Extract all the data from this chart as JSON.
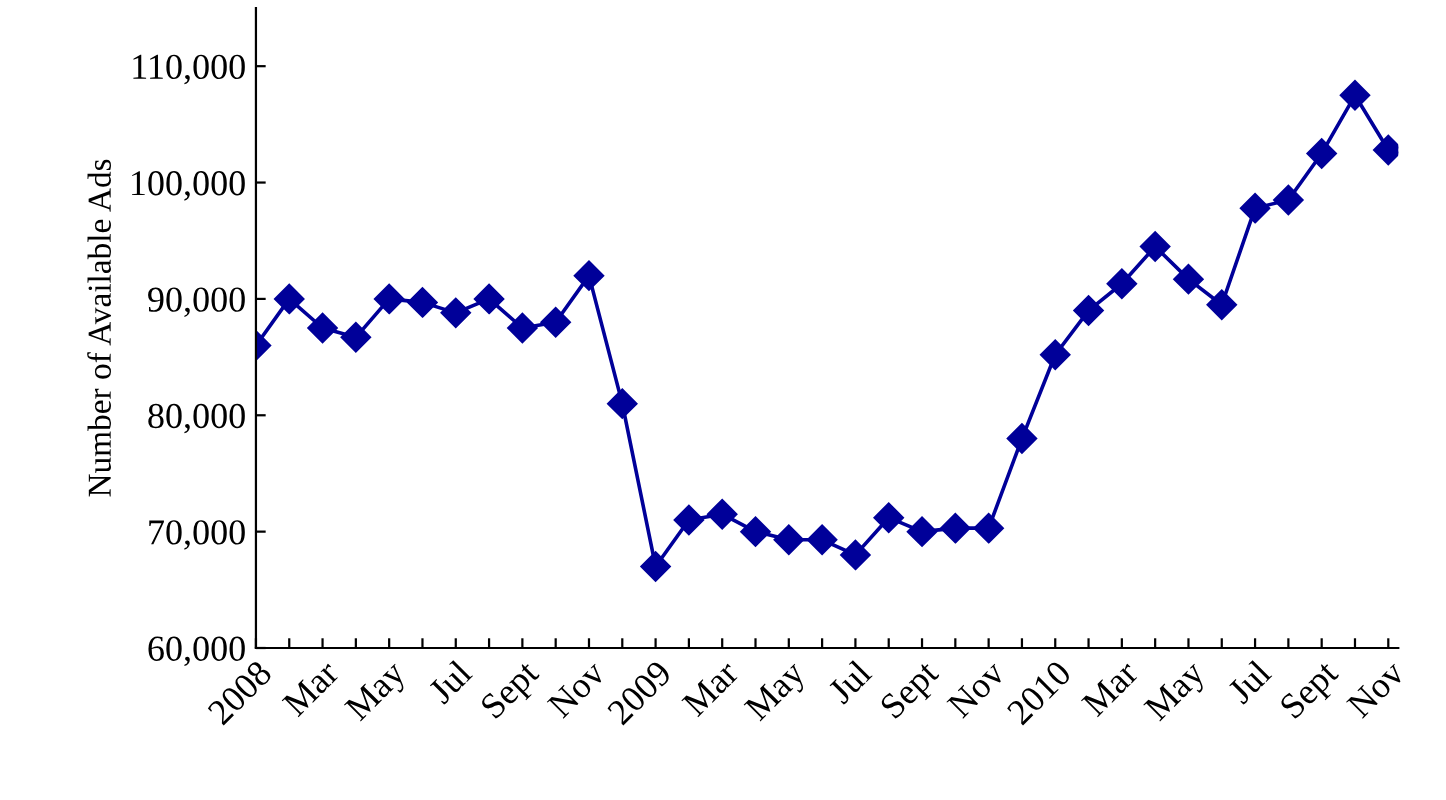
{
  "chart_data": {
    "type": "line",
    "ylabel": "Number of Available Ads",
    "categories": [
      "2008",
      null,
      "Mar",
      null,
      "May",
      null,
      "Jul",
      null,
      "Sept",
      null,
      "Nov",
      null,
      "2009",
      null,
      "Mar",
      null,
      "May",
      null,
      "Jul",
      null,
      "Sept",
      null,
      "Nov",
      null,
      "2010",
      null,
      "Mar",
      null,
      "May",
      null,
      "Jul",
      null,
      "Sept",
      null,
      "Nov"
    ],
    "series": [
      {
        "color": "#000099",
        "values": [
          86000,
          90000,
          87500,
          86700,
          90000,
          89700,
          88800,
          90000,
          87500,
          88000,
          92000,
          81000,
          67000,
          71000,
          71500,
          70000,
          69300,
          69300,
          68000,
          71200,
          70000,
          70300,
          70300,
          78000,
          85200,
          89000,
          91300,
          94500,
          91700,
          89500,
          97800,
          98500,
          102500,
          107500,
          102800
        ]
      }
    ],
    "ylim": [
      60000,
      115000
    ],
    "yticks": [
      {
        "value": 60000,
        "label": "60,000"
      },
      {
        "value": 70000,
        "label": "70,000"
      },
      {
        "value": 80000,
        "label": "80,000"
      },
      {
        "value": 90000,
        "label": "90,000"
      },
      {
        "value": 100000,
        "label": "100,000"
      },
      {
        "value": 110000,
        "label": "110,000"
      }
    ],
    "marker": "diamond",
    "line_style": "solid",
    "grid": false,
    "legend": false
  }
}
